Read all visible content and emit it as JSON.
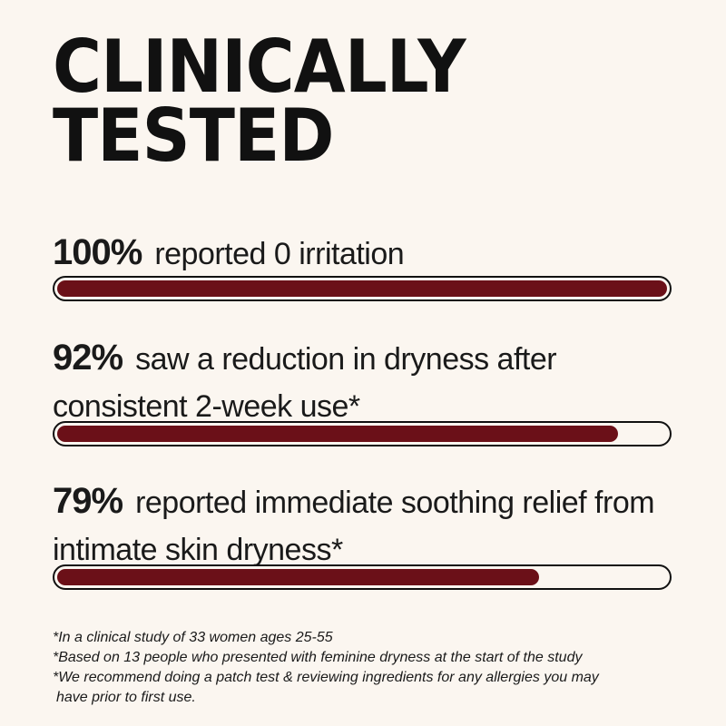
{
  "headline": {
    "line1": "CLINICALLY",
    "line2": "TESTED"
  },
  "colors": {
    "background": "#fbf6f0",
    "bar_fill": "#6b1018",
    "text": "#111111"
  },
  "stats": [
    {
      "percent": "100%",
      "value": 1.0,
      "description": "reported 0 irritation"
    },
    {
      "percent": "92%",
      "value": 0.92,
      "description": "saw a reduction in dryness after consistent 2-week use*"
    },
    {
      "percent": "79%",
      "value": 0.79,
      "description": "reported immediate soothing relief from intimate skin dryness*"
    }
  ],
  "footnotes": [
    "*In a clinical study of 33 women ages 25-55",
    "*Based on 13 people who presented with feminine dryness at the start of the study",
    "*We recommend doing a patch test & reviewing ingredients for any allergies you may",
    "have prior to first use."
  ]
}
